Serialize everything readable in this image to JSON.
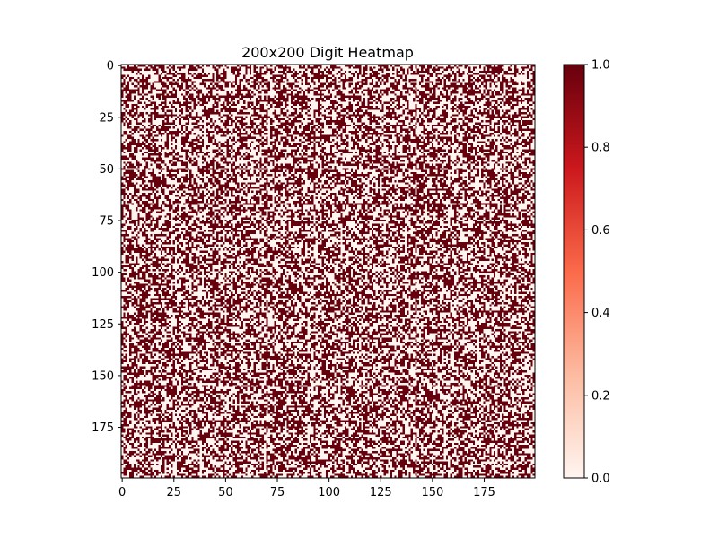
{
  "chart_data": {
    "type": "heatmap",
    "title": "200x200 Digit Heatmap",
    "rows": 200,
    "cols": 200,
    "values": "binary pattern (0 or 1), apparently random, ~50% ones",
    "colormap": "Reds",
    "colormap_stops": [
      "#fff5f0",
      "#fcbba1",
      "#fb6a4a",
      "#cb181d",
      "#67000d"
    ],
    "x_ticks": [
      "0",
      "25",
      "50",
      "75",
      "100",
      "125",
      "150",
      "175"
    ],
    "y_ticks": [
      "0",
      "25",
      "50",
      "75",
      "100",
      "125",
      "150",
      "175"
    ],
    "x_tick_values": [
      0,
      25,
      50,
      75,
      100,
      125,
      150,
      175
    ],
    "y_tick_values": [
      0,
      25,
      50,
      75,
      100,
      125,
      150,
      175
    ],
    "colorbar": {
      "ticks": [
        "0.0",
        "0.2",
        "0.4",
        "0.6",
        "0.8",
        "1.0"
      ],
      "tick_values": [
        0.0,
        0.2,
        0.4,
        0.6,
        0.8,
        1.0
      ],
      "range": [
        0.0,
        1.0
      ]
    },
    "xlabel": "",
    "ylabel": ""
  }
}
